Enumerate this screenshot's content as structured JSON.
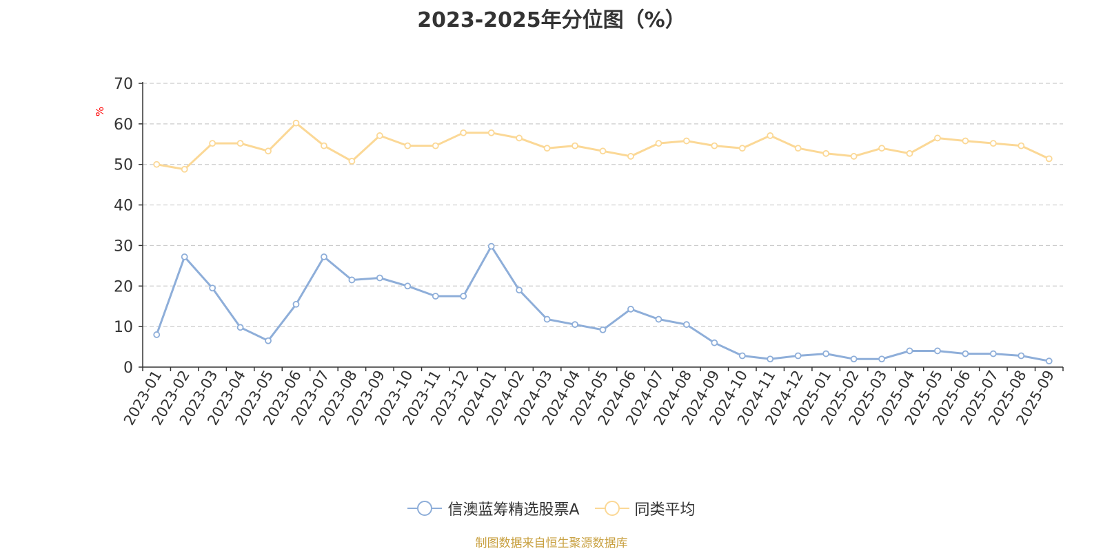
{
  "chart_data": {
    "type": "line",
    "title": "2023-2025年分位图（%）",
    "ylabel": "%",
    "ylim": [
      0,
      70
    ],
    "yticks": [
      0,
      10,
      20,
      30,
      40,
      50,
      60,
      70
    ],
    "grid": true,
    "legend_position": "bottom",
    "categories": [
      "2023-01",
      "2023-02",
      "2023-03",
      "2023-04",
      "2023-05",
      "2023-06",
      "2023-07",
      "2023-08",
      "2023-09",
      "2023-10",
      "2023-11",
      "2023-12",
      "2024-01",
      "2024-02",
      "2024-03",
      "2024-04",
      "2024-05",
      "2024-06",
      "2024-07",
      "2024-08",
      "2024-09",
      "2024-10",
      "2024-11",
      "2024-12",
      "2025-01",
      "2025-02",
      "2025-03",
      "2025-04",
      "2025-05",
      "2025-06",
      "2025-07",
      "2025-08",
      "2025-09"
    ],
    "series": [
      {
        "name": "信澳蓝筹精选股票A",
        "color": "#8eaed9",
        "values": [
          8,
          27.2,
          19.5,
          9.8,
          6.5,
          15.5,
          27.2,
          21.5,
          22,
          20,
          17.5,
          17.5,
          29.8,
          19,
          11.8,
          10.5,
          9.2,
          14.3,
          11.8,
          10.5,
          6,
          2.8,
          2,
          2.8,
          3.3,
          2,
          2,
          4,
          4,
          3.3,
          3.3,
          2.8,
          1.5
        ]
      },
      {
        "name": "同类平均",
        "color": "#fbd896",
        "values": [
          50,
          48.8,
          55.2,
          55.2,
          53.3,
          60.2,
          54.6,
          50.8,
          57.1,
          54.6,
          54.6,
          57.8,
          57.8,
          56.5,
          54,
          54.6,
          53.3,
          52,
          55.2,
          55.8,
          54.6,
          54,
          57.1,
          54,
          52.7,
          52,
          54,
          52.7,
          56.5,
          55.8,
          55.2,
          54.6,
          51.4
        ]
      }
    ]
  },
  "source_text": "制图数据来自恒生聚源数据库",
  "colors": {
    "axis": "#333333",
    "grid": "#cccccc",
    "ylabel": "#ff0000",
    "source": "#c8a040",
    "marker_fill": "#ffffff"
  }
}
